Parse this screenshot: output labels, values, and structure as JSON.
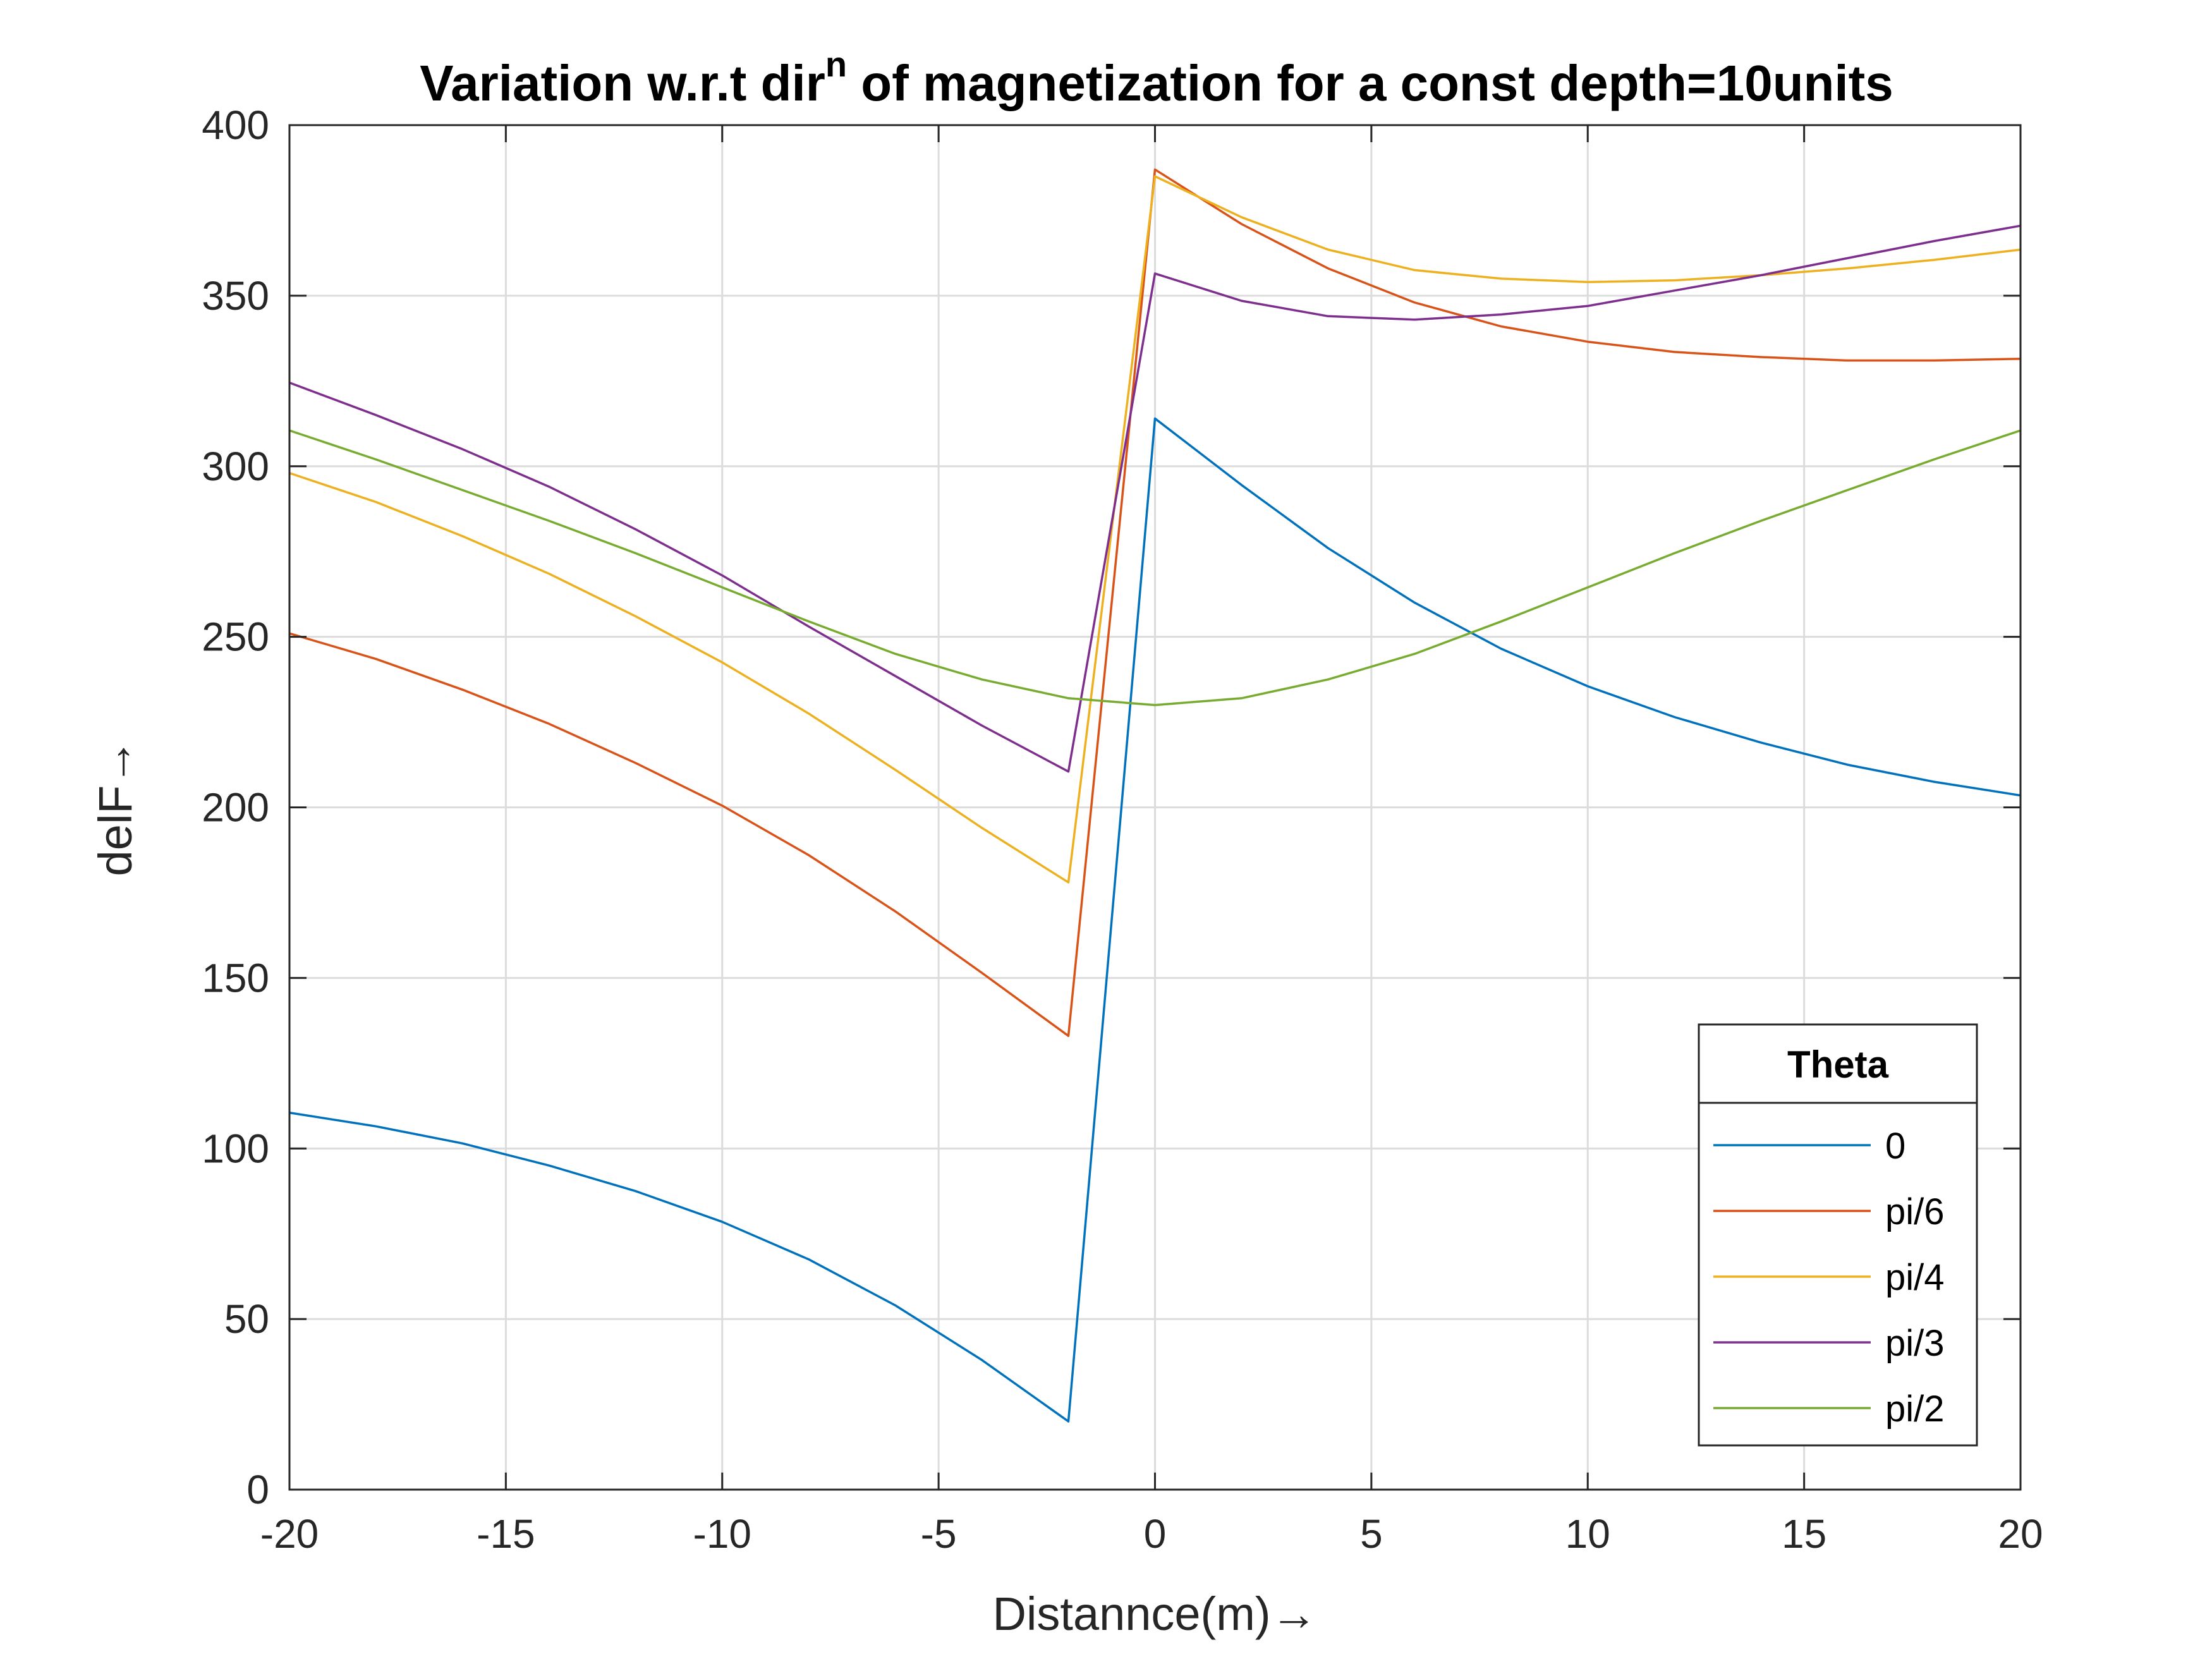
{
  "chart_data": {
    "type": "line",
    "title_main": "Variation w.r.t dir",
    "title_sup": "n",
    "title_rest": " of magnetization for a const depth=10units",
    "xlabel": "Distannce(m)→",
    "ylabel": "delF→",
    "xlim": [
      -20,
      20
    ],
    "ylim": [
      0,
      400
    ],
    "xticks": [
      -20,
      -15,
      -10,
      -5,
      0,
      5,
      10,
      15,
      20
    ],
    "yticks": [
      0,
      50,
      100,
      150,
      200,
      250,
      300,
      350,
      400
    ],
    "grid": true,
    "legend_title": "Theta",
    "legend_position": "bottom-right",
    "x": [
      -20,
      -18,
      -16,
      -14,
      -12,
      -10,
      -8,
      -6,
      -4,
      -2,
      0,
      2,
      4,
      6,
      8,
      10,
      12,
      14,
      16,
      18,
      20
    ],
    "series": [
      {
        "name": "0",
        "color": "#0072BD",
        "values": [
          110.5,
          106.5,
          101.5,
          95,
          87.5,
          78.5,
          67.5,
          54,
          38,
          20,
          314,
          294.5,
          276,
          260,
          246.5,
          235.5,
          226.5,
          219,
          212.5,
          207.5,
          203.5
        ]
      },
      {
        "name": "pi/6",
        "color": "#D95319",
        "values": [
          251,
          243.5,
          234.5,
          224.5,
          213,
          200.5,
          186,
          169.5,
          151.5,
          133,
          387,
          371,
          358,
          348,
          341,
          336.5,
          333.5,
          332,
          331,
          331,
          331.5
        ]
      },
      {
        "name": "pi/4",
        "color": "#EDB120",
        "values": [
          298,
          289.5,
          279.5,
          268.5,
          256,
          242.5,
          227.5,
          211,
          194,
          178,
          385,
          373,
          363.5,
          357.5,
          355,
          354,
          354.5,
          356,
          358,
          360.5,
          363.5
        ]
      },
      {
        "name": "pi/3",
        "color": "#7E2F8E",
        "values": [
          324.5,
          315,
          305,
          294,
          281.5,
          268,
          253,
          238.5,
          224,
          210.5,
          356.5,
          348.5,
          344,
          343,
          344.5,
          347,
          351.5,
          356,
          361,
          366,
          370.5
        ]
      },
      {
        "name": "pi/2",
        "color": "#77AC30",
        "values": [
          310.5,
          302,
          293,
          284,
          274.5,
          264.5,
          254.5,
          245,
          237.5,
          232,
          230,
          232,
          237.5,
          245,
          254.5,
          264.5,
          274.5,
          284,
          293,
          302,
          310.5
        ]
      }
    ]
  }
}
